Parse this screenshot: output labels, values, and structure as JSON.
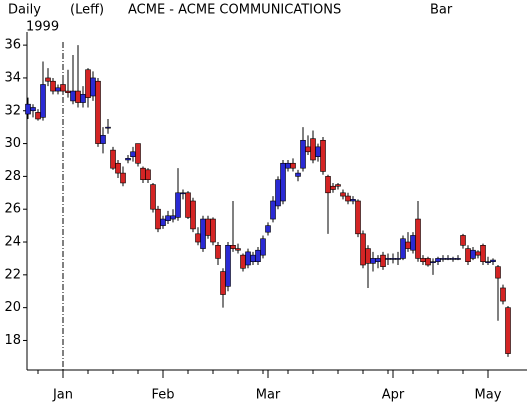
{
  "header": {
    "period": "Daily",
    "scale": "(Leff)",
    "symbol": "ACME - ACME COMMUNICATIONS",
    "style": "Bar",
    "year": "1999"
  },
  "chart_data": {
    "type": "candlestick",
    "categories": [
      null,
      null,
      null,
      null,
      null,
      null,
      null,
      "Jan",
      null,
      null,
      null,
      null,
      null,
      null,
      null,
      null,
      null,
      null,
      null,
      null,
      null,
      null,
      null,
      null,
      null,
      null,
      null,
      "Feb",
      null,
      null,
      null,
      null,
      null,
      null,
      null,
      null,
      null,
      null,
      null,
      null,
      null,
      null,
      null,
      null,
      null,
      null,
      null,
      null,
      "Mar",
      null,
      null,
      null,
      null,
      null,
      null,
      null,
      null,
      null,
      null,
      null,
      null,
      null,
      null,
      null,
      null,
      null,
      null,
      null,
      null,
      null,
      null,
      null,
      null,
      "Apr",
      null,
      null,
      null,
      null,
      null,
      null,
      null,
      null,
      null,
      null,
      null,
      null,
      null,
      null,
      null,
      null,
      null,
      null,
      "May",
      null,
      null,
      null,
      null
    ],
    "open": [
      31.8,
      32.0,
      31.9,
      31.6,
      34.0,
      33.8,
      33.2,
      33.6,
      33.2,
      32.6,
      33.2,
      32.5,
      34.5,
      32.9,
      33.8,
      30.0,
      31.0,
      29.6,
      28.8,
      28.2,
      29.0,
      29.2,
      30.0,
      28.5,
      28.4,
      27.5,
      26.0,
      25.0,
      25.3,
      25.4,
      25.5,
      27.0,
      27.0,
      26.5,
      24.5,
      23.6,
      25.4,
      25.4,
      23.8,
      22.2,
      21.3,
      23.8,
      23.6,
      23.2,
      22.6,
      22.8,
      22.8,
      23.2,
      24.6,
      25.4,
      26.2,
      26.5,
      28.5,
      28.8,
      28.0,
      28.5,
      29.8,
      30.3,
      29.2,
      30.2,
      28.0,
      27.4,
      27.5,
      27.0,
      26.8,
      26.5,
      26.5,
      24.5,
      23.6,
      22.7,
      22.8,
      23.2,
      23.0,
      23.0,
      23.0,
      23.0,
      24.0,
      23.5,
      25.4,
      23.0,
      23.0,
      22.8,
      22.8,
      23.0,
      23.0,
      23.0,
      23.0,
      24.4,
      23.6,
      23.0,
      23.4,
      23.8,
      22.8,
      22.8,
      22.5,
      21.2,
      20.0
    ],
    "high": [
      32.8,
      32.4,
      32.1,
      35.0,
      34.6,
      34.0,
      33.6,
      34.0,
      34.5,
      35.4,
      36.0,
      33.5,
      34.6,
      34.4,
      34.0,
      31.0,
      31.5,
      29.8,
      29.0,
      28.6,
      29.3,
      29.8,
      30.0,
      28.6,
      28.5,
      27.6,
      26.2,
      25.6,
      25.9,
      26.0,
      28.5,
      27.2,
      27.1,
      26.7,
      24.9,
      25.6,
      25.6,
      25.5,
      24.0,
      22.4,
      24.0,
      26.5,
      23.9,
      23.3,
      23.6,
      23.4,
      23.7,
      24.4,
      25.2,
      26.8,
      28.0,
      29.0,
      29.0,
      29.1,
      28.4,
      31.0,
      30.5,
      30.8,
      30.0,
      30.4,
      28.1,
      27.6,
      27.6,
      27.2,
      27.0,
      26.8,
      26.6,
      24.7,
      23.8,
      23.4,
      23.2,
      23.4,
      23.3,
      23.3,
      23.4,
      24.4,
      24.6,
      24.6,
      26.5,
      23.2,
      23.1,
      23.0,
      23.1,
      23.2,
      23.2,
      23.1,
      23.2,
      24.5,
      23.8,
      23.7,
      23.5,
      23.9,
      23.1,
      23.0,
      22.6,
      21.4,
      20.1
    ],
    "low": [
      31.5,
      31.6,
      31.4,
      31.4,
      33.5,
      33.0,
      33.0,
      33.0,
      32.8,
      32.4,
      32.2,
      32.2,
      32.2,
      32.6,
      29.8,
      29.4,
      30.6,
      28.4,
      27.9,
      27.4,
      28.8,
      28.9,
      28.6,
      27.6,
      27.6,
      25.8,
      24.6,
      24.8,
      25.1,
      25.2,
      25.3,
      26.6,
      25.4,
      24.6,
      23.8,
      23.4,
      24.2,
      23.8,
      22.6,
      20.0,
      21.0,
      23.4,
      23.3,
      22.2,
      22.4,
      22.6,
      22.6,
      23.0,
      24.4,
      25.2,
      26.0,
      26.3,
      28.3,
      28.3,
      27.7,
      28.3,
      29.3,
      28.8,
      28.9,
      28.1,
      24.5,
      27.0,
      27.2,
      26.6,
      26.3,
      26.3,
      24.3,
      22.4,
      21.2,
      22.2,
      22.4,
      22.3,
      22.6,
      22.7,
      22.6,
      22.9,
      23.4,
      23.3,
      22.8,
      22.6,
      22.5,
      22.0,
      22.6,
      22.8,
      22.9,
      22.8,
      22.9,
      23.6,
      22.6,
      22.9,
      23.0,
      22.6,
      22.6,
      22.6,
      19.2,
      20.2,
      17.0
    ],
    "close": [
      32.4,
      32.2,
      31.5,
      33.6,
      33.8,
      33.2,
      33.4,
      33.2,
      33.1,
      33.2,
      32.5,
      33.0,
      32.8,
      34.0,
      30.0,
      30.5,
      31.0,
      28.5,
      28.2,
      27.6,
      29.1,
      29.5,
      28.8,
      27.8,
      27.8,
      26.0,
      24.8,
      25.4,
      25.6,
      25.6,
      27.0,
      27.0,
      25.5,
      24.8,
      24.0,
      25.4,
      24.4,
      24.0,
      23.0,
      20.8,
      23.8,
      23.6,
      23.5,
      22.4,
      23.4,
      23.2,
      23.5,
      24.2,
      25.0,
      26.5,
      27.8,
      28.8,
      28.8,
      28.5,
      28.2,
      30.2,
      29.5,
      29.0,
      29.8,
      28.3,
      27.0,
      27.2,
      27.4,
      26.8,
      26.5,
      26.6,
      24.5,
      22.6,
      22.7,
      23.0,
      23.0,
      22.5,
      23.0,
      23.0,
      23.0,
      24.2,
      23.6,
      24.4,
      23.0,
      22.8,
      22.6,
      22.8,
      23.0,
      23.0,
      23.0,
      23.0,
      23.0,
      23.8,
      22.8,
      23.5,
      23.2,
      22.8,
      22.8,
      22.9,
      21.8,
      20.4,
      17.2
    ],
    "up_color": "#2a2ad4",
    "down_color": "#d42424",
    "ylim": [
      16.2,
      36.8
    ],
    "yticks": [
      18,
      20,
      22,
      24,
      26,
      28,
      30,
      32,
      34,
      36
    ]
  }
}
